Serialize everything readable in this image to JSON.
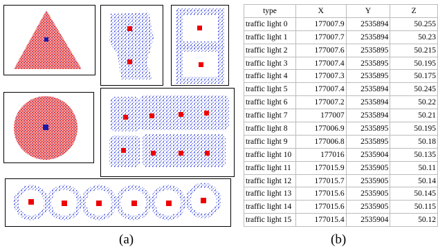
{
  "figure": {
    "caption_a": "(a)",
    "caption_b": "(b)"
  },
  "table": {
    "header": [
      "type",
      "X",
      "Y",
      "Z"
    ],
    "rows": [
      [
        "traffic light 0",
        177007.9,
        2535894,
        50.255
      ],
      [
        "traffic light 1",
        177007.7,
        2535894,
        50.23
      ],
      [
        "traffic light 2",
        177007.6,
        2535895,
        50.215
      ],
      [
        "traffic light 3",
        177007.4,
        2535895,
        50.195
      ],
      [
        "traffic light 4",
        177007.3,
        2535895,
        50.175
      ],
      [
        "traffic light 5",
        177007.4,
        2535894,
        50.245
      ],
      [
        "traffic light 6",
        177007.2,
        2535894,
        50.22
      ],
      [
        "traffic light 7",
        177007,
        2535894,
        50.21
      ],
      [
        "traffic light 8",
        177006.9,
        2535895,
        50.195
      ],
      [
        "traffic light 9",
        177006.8,
        2535895,
        50.18
      ],
      [
        "traffic light 10",
        177016,
        2535904,
        50.135
      ],
      [
        "traffic light 11",
        177015.9,
        2535905,
        50.11
      ],
      [
        "traffic light 12",
        177015.7,
        2535905,
        50.14
      ],
      [
        "traffic light 13",
        177015.6,
        2535905,
        50.145
      ],
      [
        "traffic light 14",
        177015.6,
        2535905,
        50.115
      ],
      [
        "traffic light 15",
        177015.4,
        2535904,
        50.12
      ]
    ]
  }
}
